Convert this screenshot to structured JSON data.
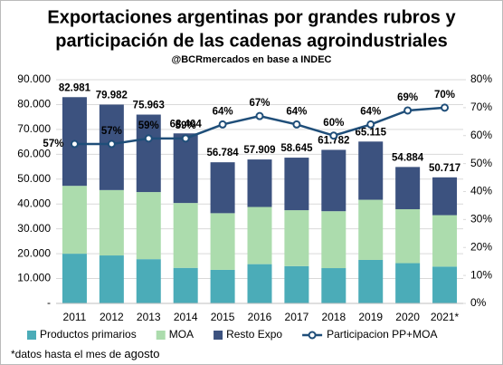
{
  "chart_data": {
    "type": "bar_line",
    "title": [
      "Exportaciones argentinas por grandes rubros y",
      "participación de las cadenas agroindustriales"
    ],
    "subtitle": "@BCRmercados en base a INDEC",
    "categories": [
      "2011",
      "2012",
      "2013",
      "2014",
      "2015",
      "2016",
      "2017",
      "2018",
      "2019",
      "2020",
      "2021*"
    ],
    "series": [
      {
        "name": "Productos primarios",
        "color": "#4bacb8",
        "values": [
          20000,
          19300,
          17800,
          14300,
          13500,
          15800,
          15000,
          14200,
          17500,
          16200,
          14800
        ]
      },
      {
        "name": "MOA",
        "color": "#acdcad",
        "values": [
          27300,
          26300,
          27000,
          26100,
          22800,
          23000,
          22500,
          22900,
          24200,
          21700,
          20700
        ]
      },
      {
        "name": "Resto Expo",
        "color": "#3c527f",
        "values": [
          35681,
          34382,
          31163,
          28004,
          20484,
          19109,
          21145,
          24682,
          23415,
          16984,
          15217
        ]
      },
      {
        "name": "Participacion PP+MOA",
        "color": "#1f4e79",
        "axis": "y2",
        "values": [
          57,
          57,
          59,
          59,
          64,
          67,
          64,
          60,
          64,
          69,
          70
        ],
        "value_labels": [
          "57%",
          "57%",
          "59%",
          "59%",
          "64%",
          "67%",
          "64%",
          "60%",
          "64%",
          "69%",
          "70%"
        ]
      }
    ],
    "totals": [
      82981,
      79982,
      75963,
      68404,
      56784,
      57909,
      58645,
      61782,
      65115,
      54884,
      50717
    ],
    "total_labels": [
      "82.981",
      "79.982",
      "75.963",
      "68.404",
      "56.784",
      "57.909",
      "58.645",
      "61.782",
      "65.115",
      "54.884",
      "50.717"
    ],
    "ylim": [
      0,
      90000
    ],
    "yticks": [
      {
        "value": 0,
        "label": "-"
      },
      {
        "value": 10000,
        "label": "10.000"
      },
      {
        "value": 20000,
        "label": "20.000"
      },
      {
        "value": 30000,
        "label": "30.000"
      },
      {
        "value": 40000,
        "label": "40.000"
      },
      {
        "value": 50000,
        "label": "50.000"
      },
      {
        "value": 60000,
        "label": "60.000"
      },
      {
        "value": 70000,
        "label": "70.000"
      },
      {
        "value": 80000,
        "label": "80.000"
      },
      {
        "value": 90000,
        "label": "90.000"
      }
    ],
    "y2lim": [
      0,
      80
    ],
    "y2ticks": [
      {
        "value": 0,
        "label": "0%"
      },
      {
        "value": 10,
        "label": "10%"
      },
      {
        "value": 20,
        "label": "20%"
      },
      {
        "value": 30,
        "label": "30%"
      },
      {
        "value": 40,
        "label": "40%"
      },
      {
        "value": 50,
        "label": "50%"
      },
      {
        "value": 60,
        "label": "60%"
      },
      {
        "value": 70,
        "label": "70%"
      },
      {
        "value": 80,
        "label": "80%"
      }
    ],
    "grid": true,
    "footnote": "*datos hasta el mes de",
    "footnote_emphasis": "agosto"
  }
}
